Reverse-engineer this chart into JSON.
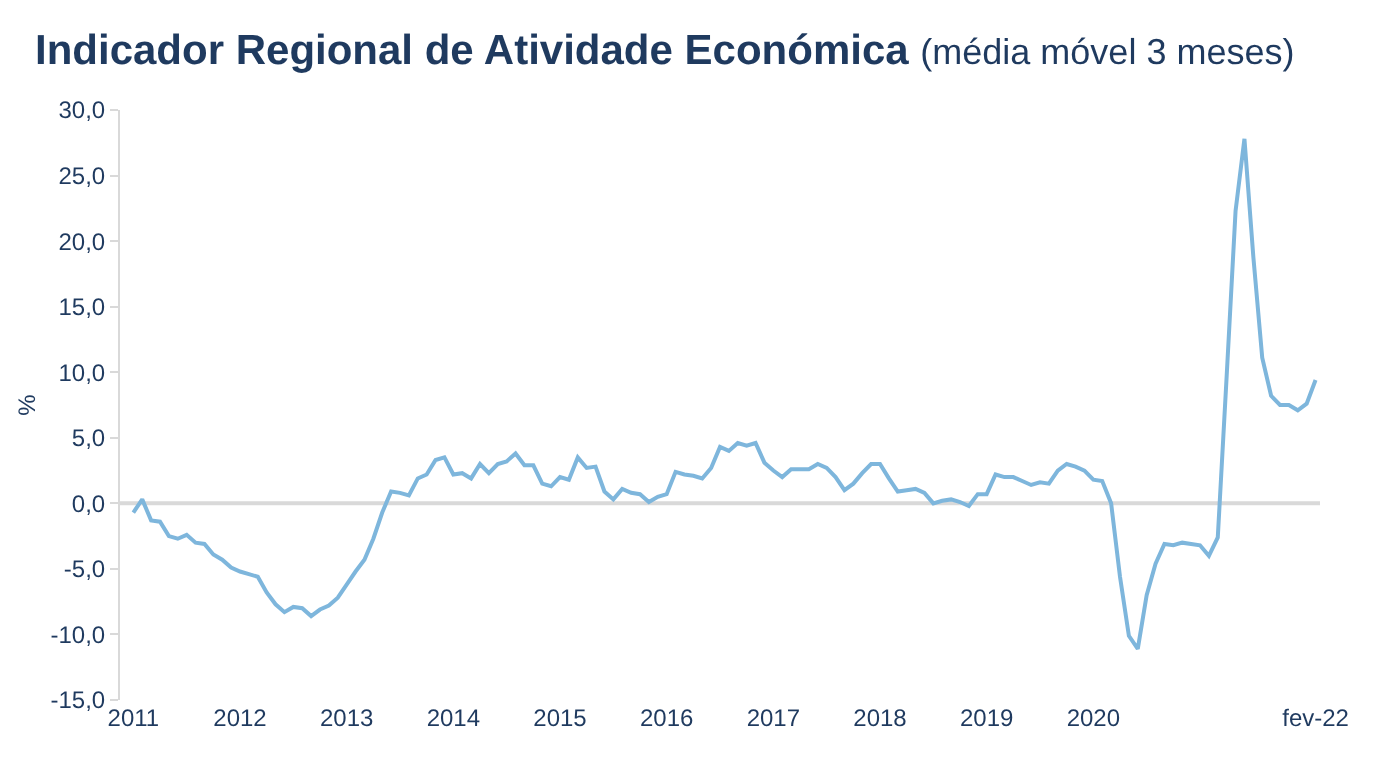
{
  "chart_data": {
    "type": "line",
    "title": "Indicador Regional de Atividade Económica",
    "subtitle": "(média móvel 3 meses)",
    "ylabel": "%",
    "grid": false,
    "legend": false,
    "marker": "none",
    "line_style": "solid",
    "categories": [
      "2011",
      null,
      null,
      null,
      null,
      null,
      null,
      null,
      null,
      null,
      null,
      null,
      "2012",
      null,
      null,
      null,
      null,
      null,
      null,
      null,
      null,
      null,
      null,
      null,
      "2013",
      null,
      null,
      null,
      null,
      null,
      null,
      null,
      null,
      null,
      null,
      null,
      "2014",
      null,
      null,
      null,
      null,
      null,
      null,
      null,
      null,
      null,
      null,
      null,
      "2015",
      null,
      null,
      null,
      null,
      null,
      null,
      null,
      null,
      null,
      null,
      null,
      "2016",
      null,
      null,
      null,
      null,
      null,
      null,
      null,
      null,
      null,
      null,
      null,
      "2017",
      null,
      null,
      null,
      null,
      null,
      null,
      null,
      null,
      null,
      null,
      null,
      "2018",
      null,
      null,
      null,
      null,
      null,
      null,
      null,
      null,
      null,
      null,
      null,
      "2019",
      null,
      null,
      null,
      null,
      null,
      null,
      null,
      null,
      null,
      null,
      null,
      "2020",
      null,
      null,
      null,
      null,
      null,
      null,
      null,
      null,
      null,
      null,
      null,
      null,
      null,
      null,
      null,
      null,
      null,
      null,
      null,
      null,
      null,
      null,
      null,
      null,
      "fev-22"
    ],
    "series": [
      {
        "color": "#7eb6dc",
        "values": [
          -0.7,
          0.3,
          -1.3,
          -1.4,
          -2.5,
          -2.7,
          -2.4,
          -3.0,
          -3.1,
          -3.9,
          -4.3,
          -4.9,
          -5.2,
          -5.4,
          -5.6,
          -6.8,
          -7.7,
          -8.3,
          -7.9,
          -8.0,
          -8.6,
          -8.1,
          -7.8,
          -7.2,
          -6.2,
          -5.2,
          -4.3,
          -2.7,
          -0.7,
          0.9,
          0.8,
          0.6,
          1.9,
          2.2,
          3.3,
          3.5,
          2.2,
          2.3,
          1.9,
          3.0,
          2.3,
          3.0,
          3.2,
          3.8,
          2.9,
          2.9,
          1.5,
          1.3,
          2.0,
          1.8,
          3.5,
          2.7,
          2.8,
          0.9,
          0.3,
          1.1,
          0.8,
          0.7,
          0.1,
          0.5,
          0.7,
          2.4,
          2.2,
          2.1,
          1.9,
          2.7,
          4.3,
          4.0,
          4.6,
          4.4,
          4.6,
          3.1,
          2.5,
          2.0,
          2.6,
          2.6,
          2.6,
          3.0,
          2.7,
          2.0,
          1.0,
          1.5,
          2.3,
          3.0,
          3.0,
          1.9,
          0.9,
          1.0,
          1.1,
          0.8,
          0.0,
          0.2,
          0.3,
          0.1,
          -0.2,
          0.7,
          0.7,
          2.2,
          2.0,
          2.0,
          1.7,
          1.4,
          1.6,
          1.5,
          2.5,
          3.0,
          2.8,
          2.5,
          1.8,
          1.7,
          0.0,
          -5.6,
          -10.1,
          -11.1,
          -7.0,
          -4.6,
          -3.1,
          -3.2,
          -3.0,
          -3.1,
          -3.2,
          -4.0,
          -2.6,
          9.7,
          22.3,
          27.8,
          18.8,
          11.1,
          8.2,
          7.5,
          7.5,
          7.1,
          7.6,
          9.4
        ]
      }
    ],
    "ref_lines": [
      {
        "axis": "y",
        "value": 0,
        "color": "#d9d9d9"
      }
    ],
    "ylim": [
      -15,
      30
    ],
    "yticks": [
      {
        "value": -15,
        "label": "-15,0"
      },
      {
        "value": -10,
        "label": "-10,0"
      },
      {
        "value": -5,
        "label": "-5,0"
      },
      {
        "value": 0,
        "label": "0,0"
      },
      {
        "value": 5,
        "label": "5,0"
      },
      {
        "value": 10,
        "label": "10,0"
      },
      {
        "value": 15,
        "label": "15,0"
      },
      {
        "value": 20,
        "label": "20,0"
      },
      {
        "value": 25,
        "label": "25,0"
      },
      {
        "value": 30,
        "label": "30,0"
      }
    ]
  }
}
